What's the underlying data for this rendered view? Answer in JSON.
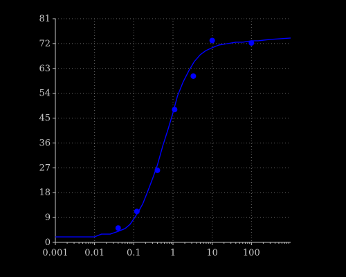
{
  "chart_data": {
    "type": "line",
    "title": "",
    "xlabel": "",
    "ylabel": "",
    "x_scale": "log",
    "xlim": [
      0.001,
      1000
    ],
    "ylim": [
      0,
      81
    ],
    "grid": true,
    "legend": "none",
    "colors": {
      "background": "#000000",
      "axis": "#c8c8c8",
      "grid": "#6a6a6a",
      "series": "#0000ff",
      "points": "#0000ff"
    },
    "x_ticks": [
      {
        "value": 0.001,
        "label": "0.001"
      },
      {
        "value": 0.01,
        "label": "0.01"
      },
      {
        "value": 0.1,
        "label": "0.1"
      },
      {
        "value": 1,
        "label": "1"
      },
      {
        "value": 10,
        "label": "10"
      },
      {
        "value": 100,
        "label": "100"
      }
    ],
    "y_ticks": [
      {
        "value": 0,
        "label": "0"
      },
      {
        "value": 9,
        "label": "9"
      },
      {
        "value": 18,
        "label": "18"
      },
      {
        "value": 27,
        "label": "27"
      },
      {
        "value": 36,
        "label": "36"
      },
      {
        "value": 45,
        "label": "45"
      },
      {
        "value": 54,
        "label": "54"
      },
      {
        "value": 63,
        "label": "63"
      },
      {
        "value": 72,
        "label": "72"
      },
      {
        "value": 81,
        "label": "81"
      }
    ],
    "series": [
      {
        "kind": "line",
        "x": [
          0.001,
          0.003,
          0.01,
          0.015,
          0.025,
          0.04,
          0.06,
          0.08,
          0.1,
          0.13,
          0.17,
          0.22,
          0.3,
          0.4,
          0.55,
          0.75,
          1.0,
          1.3,
          1.8,
          2.5,
          3.5,
          5,
          7,
          10,
          15,
          25,
          40,
          60,
          100,
          150,
          300,
          1000
        ],
        "y": [
          2,
          2,
          2,
          3,
          3,
          4,
          5,
          6.5,
          8.5,
          11,
          14,
          18,
          23,
          28,
          35,
          41,
          47,
          53,
          58,
          62,
          65.5,
          68,
          69.5,
          70.5,
          71.5,
          72,
          72.5,
          72.5,
          73,
          73,
          73.5,
          74
        ]
      },
      {
        "kind": "points",
        "x": [
          0.04,
          0.12,
          0.4,
          1.1,
          3.3,
          10,
          100
        ],
        "y": [
          5.2,
          11.2,
          26.1,
          48.1,
          60.2,
          73.1,
          72.2
        ]
      }
    ]
  }
}
